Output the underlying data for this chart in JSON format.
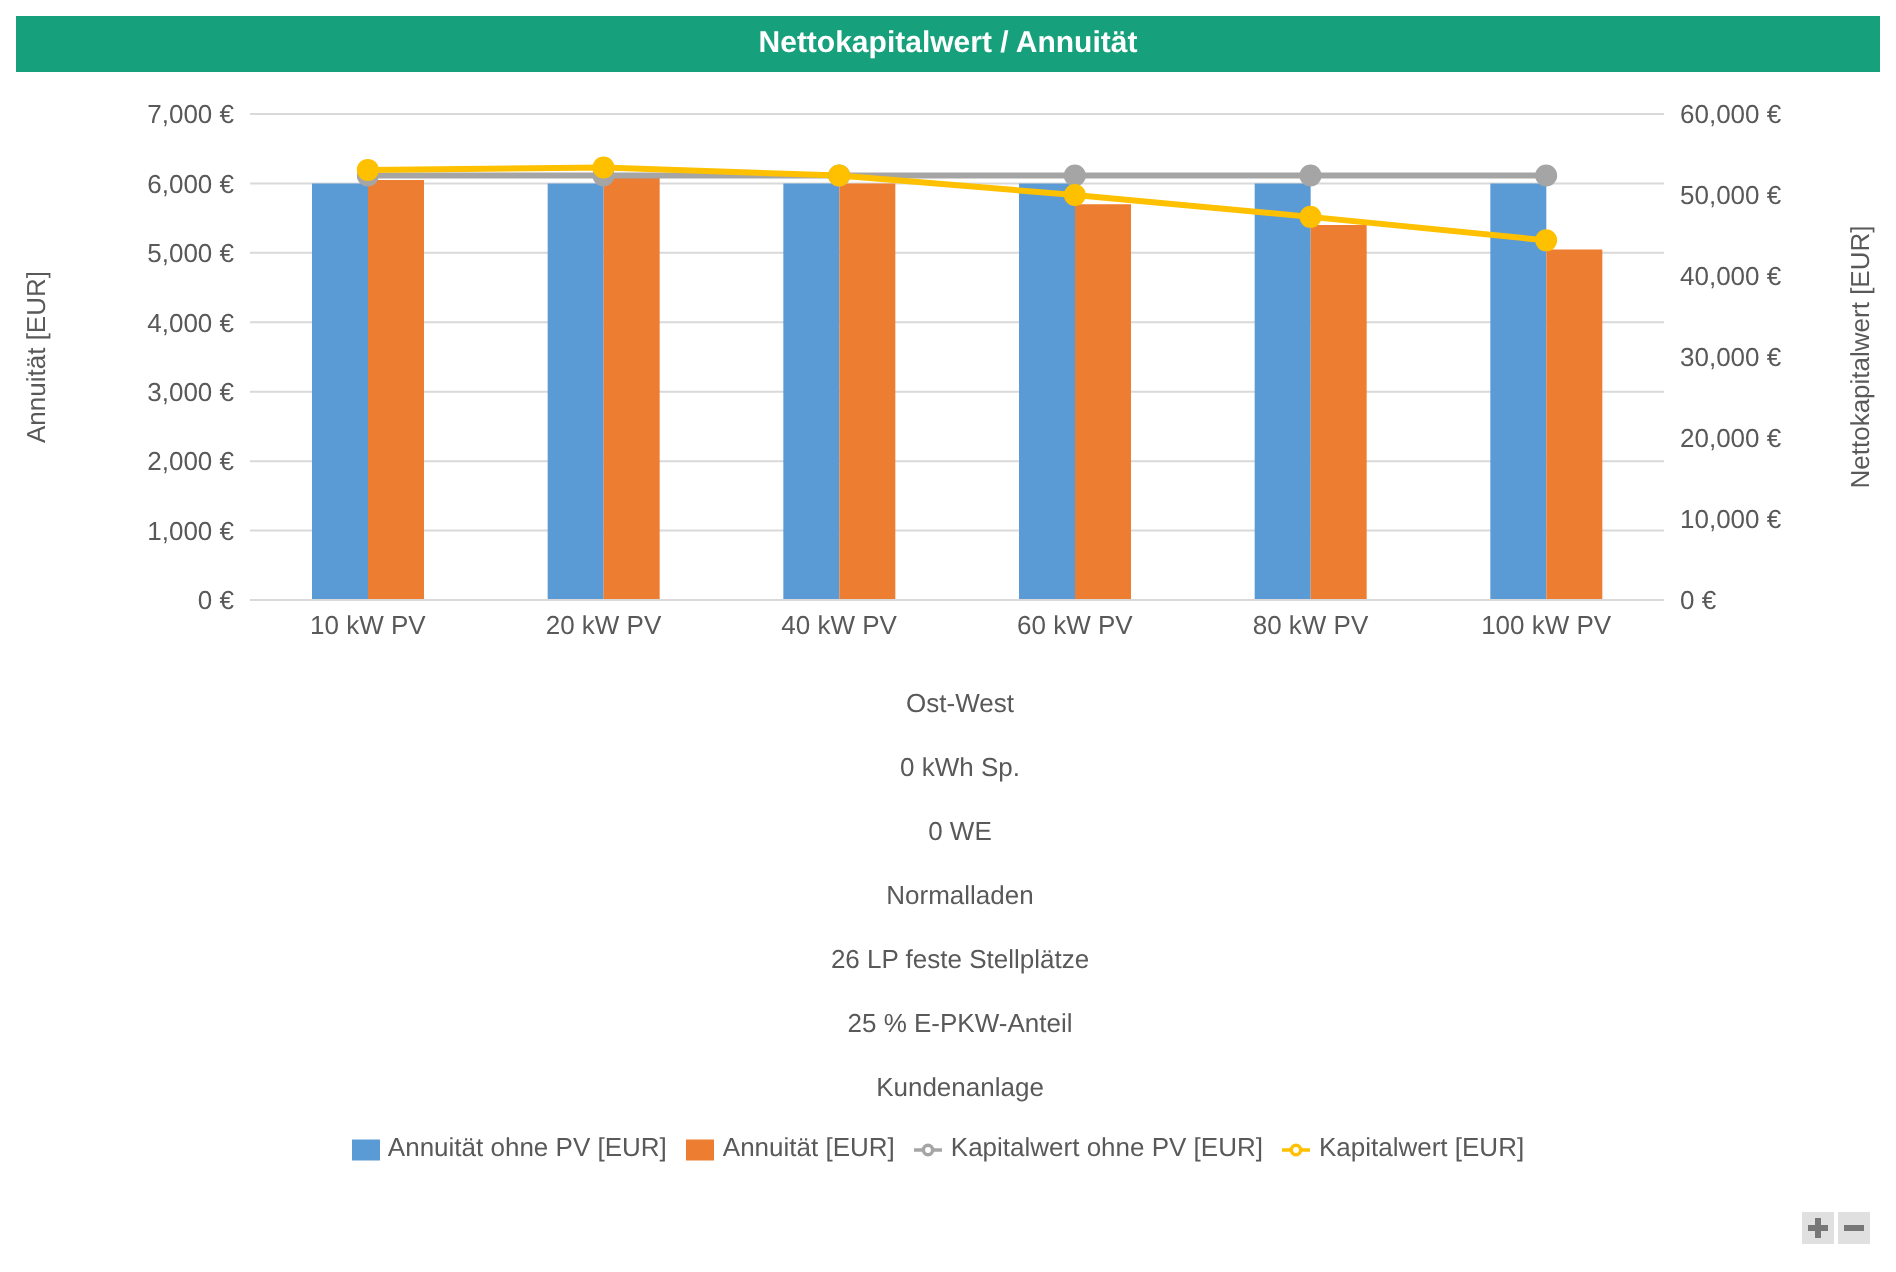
{
  "chart_data": {
    "type": "bar",
    "title": "Nettokapitalwert / Annuität",
    "ylabel": "Annuität [EUR]",
    "y2label": "Nettokapitalwert [EUR]",
    "categories": [
      "10 kW PV",
      "20 kW PV",
      "40 kW PV",
      "60 kW PV",
      "80 kW PV",
      "100 kW PV"
    ],
    "series": [
      {
        "name": "Annuität ohne PV [EUR]",
        "color": "#5b9bd5",
        "values": [
          6000,
          6000,
          6000,
          6000,
          6000,
          6000
        ]
      },
      {
        "name": "Annuität [EUR]",
        "color": "#ed7d31",
        "values": [
          6050,
          6100,
          6000,
          5700,
          5400,
          5050
        ]
      },
      {
        "name": "Kapitalwert ohne PV [EUR]",
        "type": "line",
        "axis": "y2",
        "color": "#a5a5a5",
        "values": [
          52400,
          52400,
          52400,
          52400,
          52400,
          52400
        ]
      },
      {
        "name": "Kapitalwert [EUR]",
        "type": "line",
        "axis": "y2",
        "color": "#ffc000",
        "values": [
          53100,
          53400,
          52400,
          50000,
          47300,
          44400
        ]
      }
    ],
    "ylim": [
      0,
      7000
    ],
    "yticks": [
      {
        "value": 0,
        "label": "0 €"
      },
      {
        "value": 1000,
        "label": "1,000 €"
      },
      {
        "value": 2000,
        "label": "2,000 €"
      },
      {
        "value": 3000,
        "label": "3,000 €"
      },
      {
        "value": 4000,
        "label": "4,000 €"
      },
      {
        "value": 5000,
        "label": "5,000 €"
      },
      {
        "value": 6000,
        "label": "6,000 €"
      },
      {
        "value": 7000,
        "label": "7,000 €"
      }
    ],
    "y2lim": [
      0,
      60000
    ],
    "y2ticks": [
      {
        "value": 0,
        "label": "0 €"
      },
      {
        "value": 10000,
        "label": "10,000 €"
      },
      {
        "value": 20000,
        "label": "20,000 €"
      },
      {
        "value": 30000,
        "label": "30,000 €"
      },
      {
        "value": 40000,
        "label": "40,000 €"
      },
      {
        "value": 50000,
        "label": "50,000 €"
      },
      {
        "value": 60000,
        "label": "60,000 €"
      }
    ],
    "annotations": [
      "Ost-West",
      "0 kWh Sp.",
      "0 WE",
      "Normalladen",
      "26 LP feste Stellplätze",
      "25 % E-PKW-Anteil",
      "Kundenanlage"
    ],
    "grid": "y",
    "legend": "bottom",
    "marker": "circle",
    "line_style": "solid"
  }
}
